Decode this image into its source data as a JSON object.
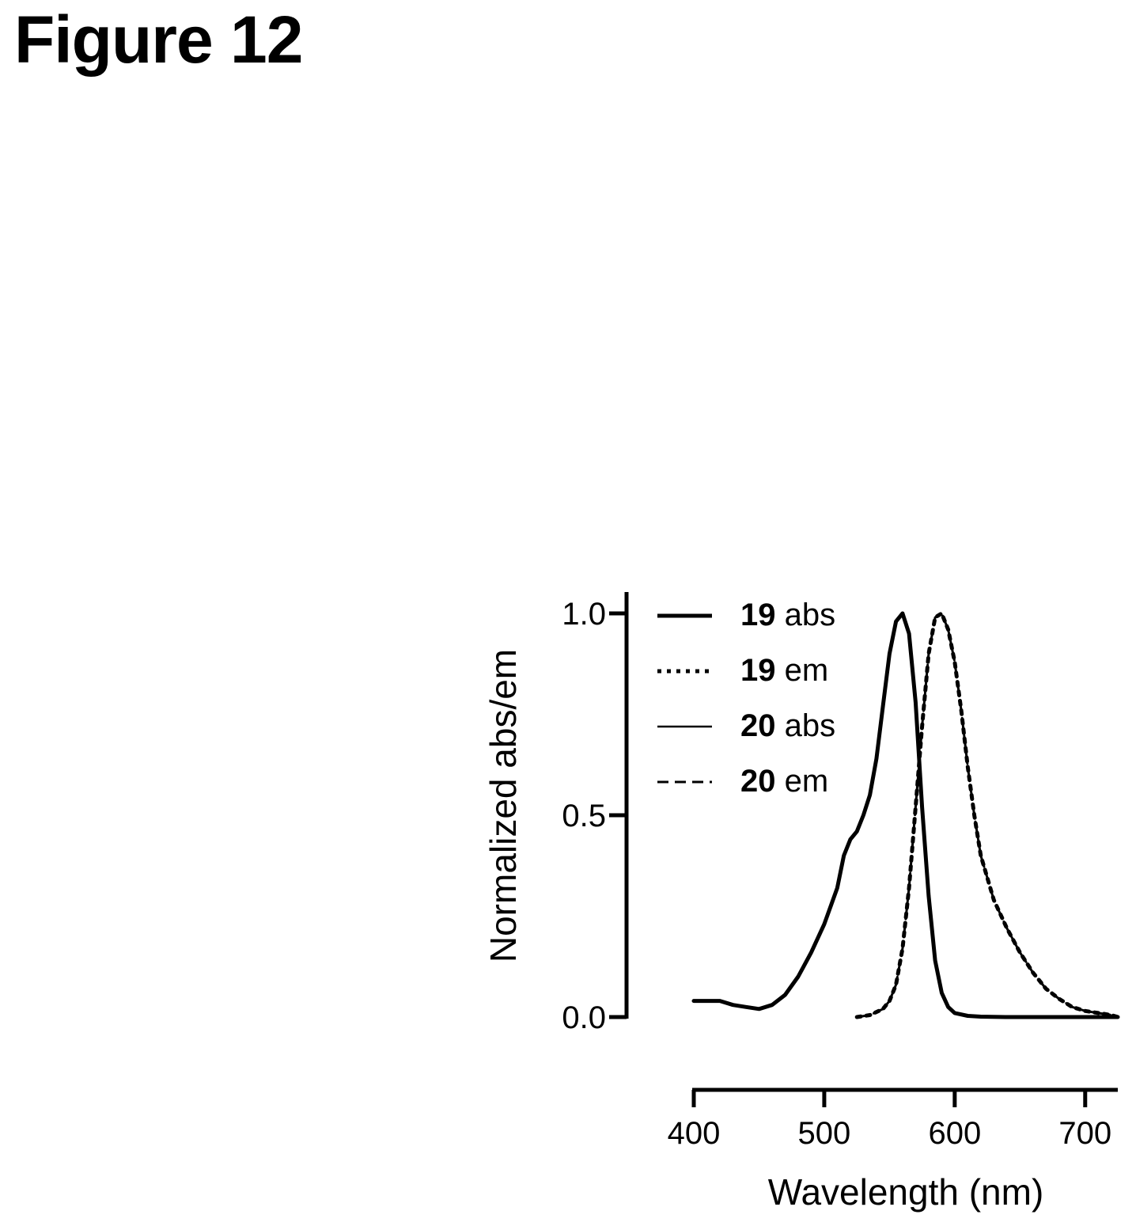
{
  "figure": {
    "title": "Figure 12"
  },
  "chart_data": {
    "type": "line",
    "title": "",
    "xlabel": "Wavelength (nm)",
    "ylabel": "Normalized abs/em",
    "xlim": [
      400,
      725
    ],
    "ylim": [
      0,
      1.0
    ],
    "xticks": [
      400,
      500,
      600,
      700
    ],
    "yticks": [
      0.0,
      0.5,
      1.0
    ],
    "xtick_labels": [
      "400",
      "500",
      "600",
      "700"
    ],
    "ytick_labels": [
      "0.0",
      "0.5",
      "1.0"
    ],
    "grid": false,
    "legend_position": "top-right",
    "series": [
      {
        "name": "19 abs",
        "name_number": "19",
        "name_suffix": "abs",
        "style": "solid-thick",
        "color": "#000000",
        "x": [
          400,
          410,
          420,
          430,
          440,
          450,
          460,
          470,
          480,
          490,
          500,
          510,
          515,
          520,
          525,
          530,
          535,
          540,
          545,
          550,
          555,
          560,
          565,
          570,
          575,
          580,
          585,
          590,
          595,
          600,
          610,
          620,
          640,
          660,
          680,
          700,
          725
        ],
        "y": [
          0.04,
          0.04,
          0.04,
          0.03,
          0.025,
          0.02,
          0.03,
          0.055,
          0.1,
          0.16,
          0.23,
          0.32,
          0.4,
          0.44,
          0.46,
          0.5,
          0.55,
          0.64,
          0.77,
          0.9,
          0.98,
          1.0,
          0.95,
          0.78,
          0.52,
          0.3,
          0.14,
          0.06,
          0.025,
          0.01,
          0.003,
          0.001,
          0.0,
          0.0,
          0.0,
          0.0,
          0.0
        ]
      },
      {
        "name": "19 em",
        "name_number": "19",
        "name_suffix": "em",
        "style": "dotted-thick",
        "color": "#000000",
        "x": [
          525,
          535,
          545,
          550,
          555,
          560,
          565,
          570,
          575,
          580,
          585,
          590,
          595,
          600,
          605,
          610,
          615,
          620,
          630,
          640,
          650,
          660,
          670,
          680,
          690,
          700,
          710,
          720,
          725
        ],
        "y": [
          0.0,
          0.005,
          0.02,
          0.04,
          0.08,
          0.17,
          0.32,
          0.52,
          0.72,
          0.9,
          0.99,
          1.0,
          0.96,
          0.88,
          0.76,
          0.62,
          0.5,
          0.4,
          0.29,
          0.22,
          0.16,
          0.11,
          0.07,
          0.045,
          0.025,
          0.015,
          0.01,
          0.005,
          0.0
        ]
      },
      {
        "name": "20 abs",
        "name_number": "20",
        "name_suffix": "abs",
        "style": "solid-thin",
        "color": "#000000",
        "x": [
          400,
          410,
          420,
          430,
          440,
          450,
          460,
          470,
          480,
          490,
          500,
          510,
          515,
          520,
          525,
          530,
          535,
          540,
          545,
          550,
          555,
          560,
          565,
          570,
          575,
          580,
          585,
          590,
          595,
          600,
          610,
          620,
          640,
          660,
          680,
          700,
          725
        ],
        "y": [
          0.04,
          0.04,
          0.04,
          0.03,
          0.025,
          0.02,
          0.03,
          0.055,
          0.1,
          0.16,
          0.23,
          0.32,
          0.4,
          0.44,
          0.46,
          0.5,
          0.55,
          0.64,
          0.77,
          0.9,
          0.98,
          1.0,
          0.95,
          0.78,
          0.52,
          0.3,
          0.14,
          0.06,
          0.025,
          0.01,
          0.003,
          0.001,
          0.0,
          0.0,
          0.0,
          0.0,
          0.0
        ]
      },
      {
        "name": "20 em",
        "name_number": "20",
        "name_suffix": "em",
        "style": "dashed-thin",
        "color": "#000000",
        "x": [
          525,
          535,
          545,
          550,
          555,
          560,
          565,
          570,
          575,
          580,
          585,
          590,
          595,
          600,
          605,
          610,
          615,
          620,
          630,
          640,
          650,
          660,
          670,
          680,
          690,
          700,
          710,
          720,
          725
        ],
        "y": [
          0.0,
          0.005,
          0.02,
          0.04,
          0.08,
          0.17,
          0.32,
          0.52,
          0.72,
          0.9,
          0.99,
          1.0,
          0.96,
          0.88,
          0.76,
          0.62,
          0.5,
          0.4,
          0.29,
          0.22,
          0.16,
          0.11,
          0.07,
          0.045,
          0.025,
          0.015,
          0.01,
          0.005,
          0.0
        ]
      }
    ]
  }
}
